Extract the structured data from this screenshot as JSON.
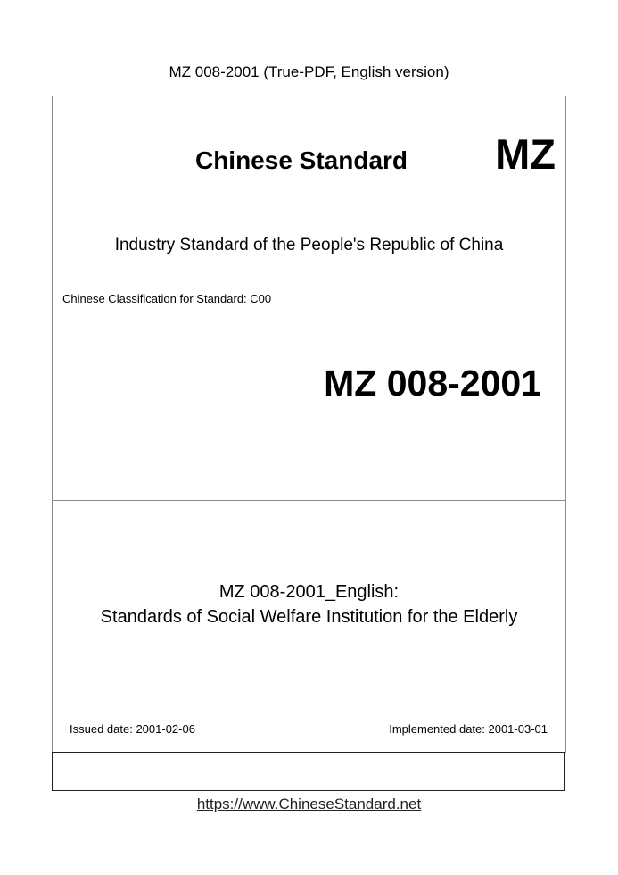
{
  "header": "MZ 008-2001 (True-PDF, English version)",
  "cover": {
    "chinese_standard": "Chinese Standard",
    "prefix": "MZ",
    "industry": "Industry Standard of the People's Republic of China",
    "classification": "Chinese Classification for Standard: C00",
    "code": "MZ 008-2001",
    "title_line1": "MZ 008-2001_English:",
    "title_line2": "Standards of Social Welfare Institution for the Elderly",
    "issued": "Issued date: 2001-02-06",
    "implemented": "Implemented date: 2001-03-01"
  },
  "footer": {
    "url": "https://www.ChineseStandard.net"
  }
}
